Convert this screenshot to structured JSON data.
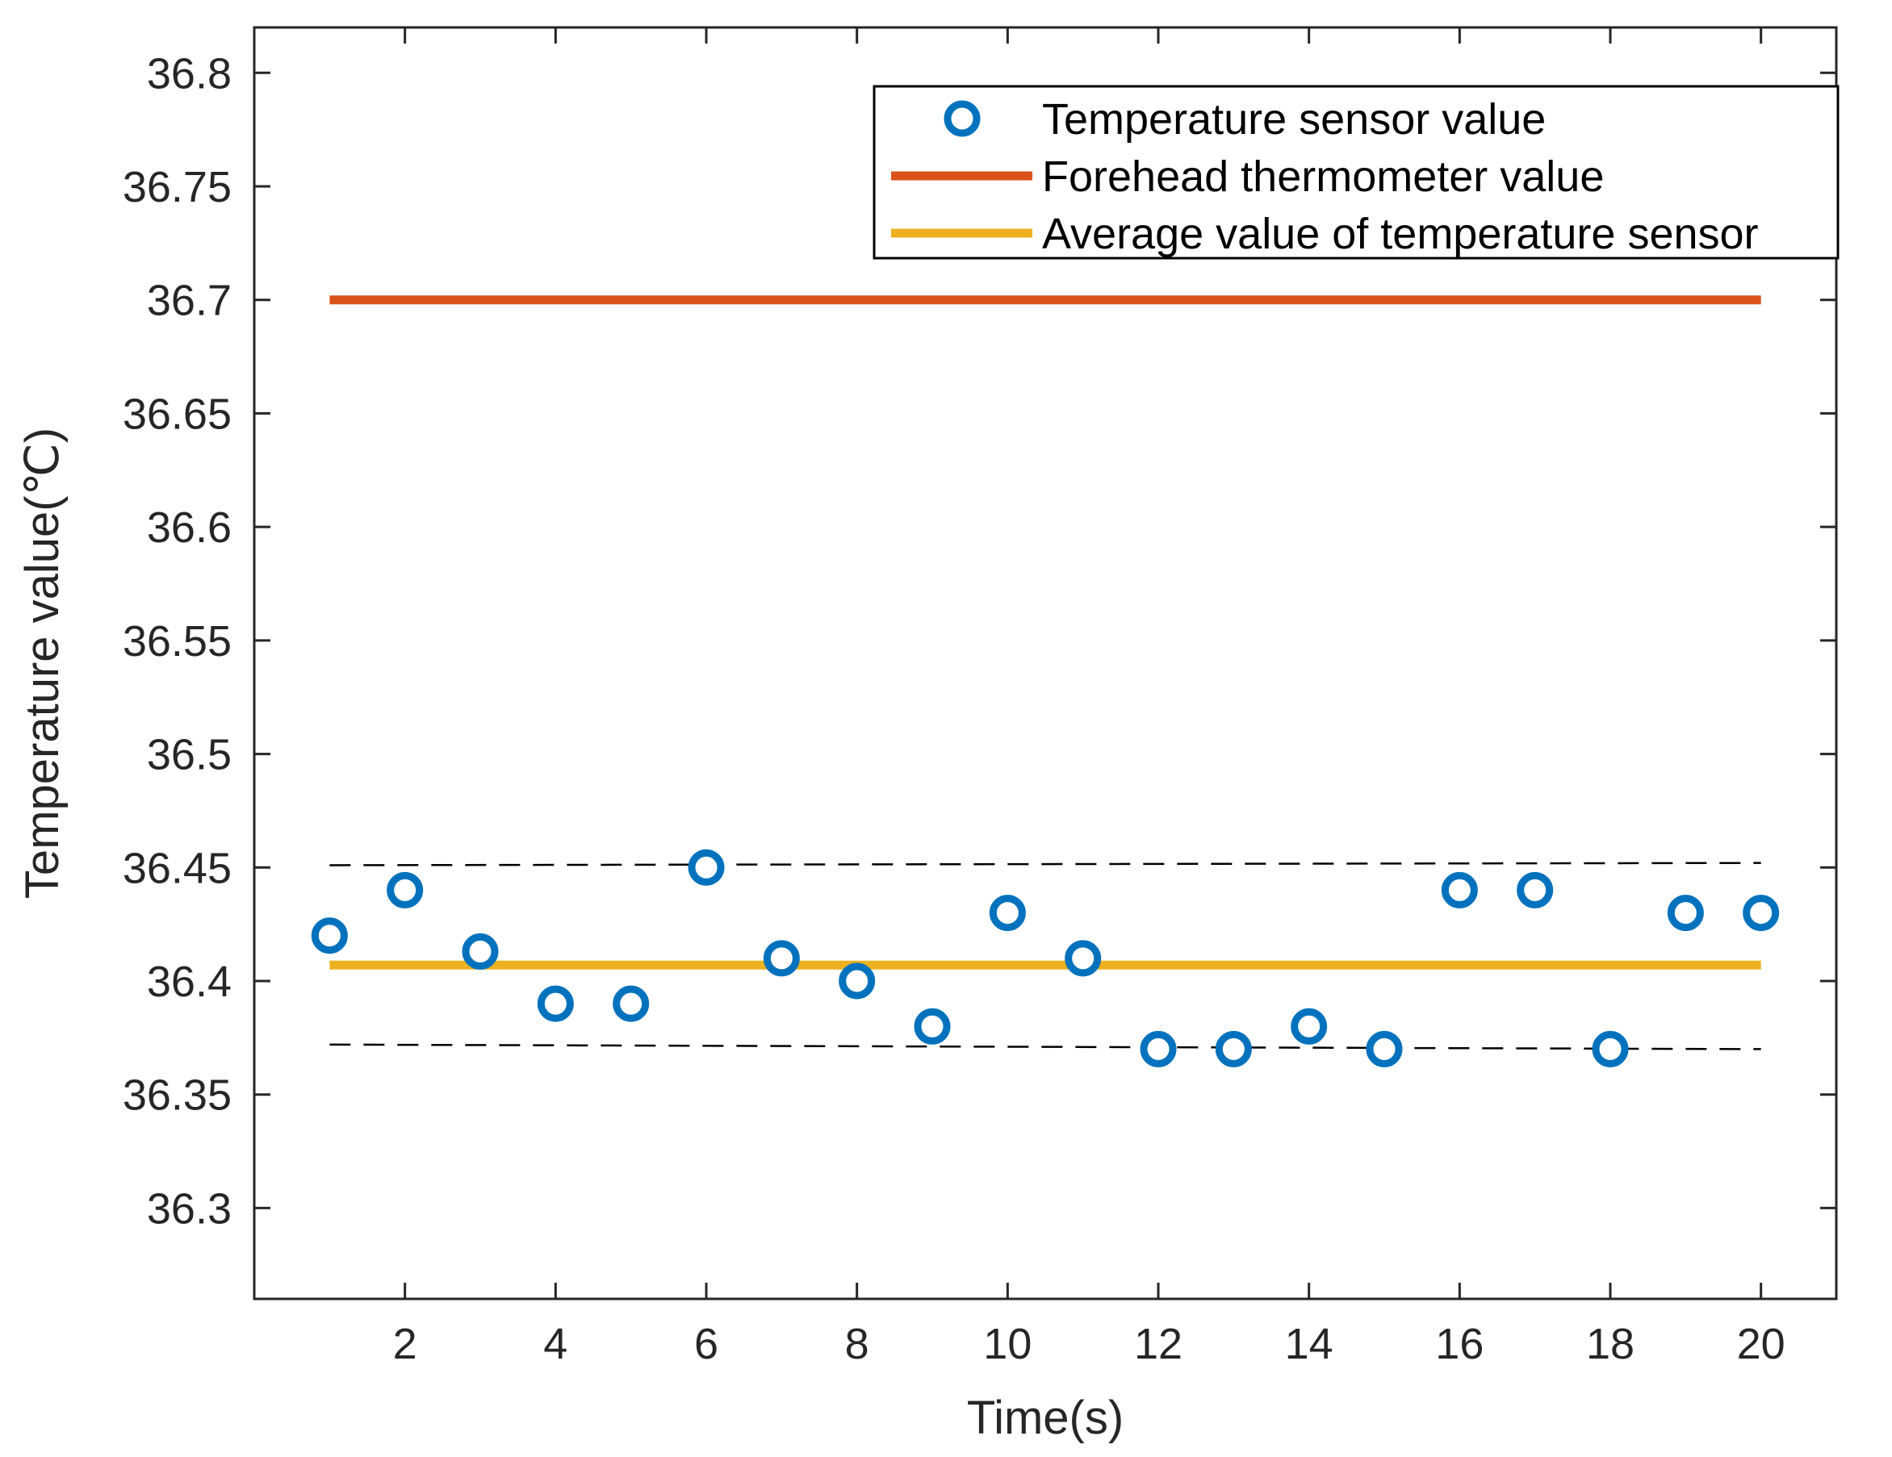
{
  "chart_data": {
    "type": "scatter",
    "title": "",
    "xlabel": "Time(s)",
    "ylabel": "Temperature value(℃)",
    "xlim": [
      0,
      21
    ],
    "ylim": [
      36.26,
      36.82
    ],
    "xticks": [
      2,
      4,
      6,
      8,
      10,
      12,
      14,
      16,
      18,
      20
    ],
    "xtick_labels": [
      "2",
      "4",
      "6",
      "8",
      "10",
      "12",
      "14",
      "16",
      "18",
      "20"
    ],
    "yticks": [
      36.3,
      36.35,
      36.4,
      36.45,
      36.5,
      36.55,
      36.6,
      36.65,
      36.7,
      36.75,
      36.8
    ],
    "ytick_labels": [
      "36.3",
      "36.35",
      "36.4",
      "36.45",
      "36.5",
      "36.55",
      "36.6",
      "36.65",
      "36.7",
      "36.75",
      "36.8"
    ],
    "grid": false,
    "legend_position": "top-right",
    "series": [
      {
        "name": "Temperature sensor value",
        "kind": "scatter",
        "marker": "circle-open",
        "color": "#0072BD",
        "x": [
          1,
          2,
          3,
          4,
          5,
          6,
          7,
          8,
          9,
          10,
          11,
          12,
          13,
          14,
          15,
          16,
          17,
          18,
          19,
          20
        ],
        "y": [
          36.42,
          36.44,
          36.413,
          36.39,
          36.39,
          36.45,
          36.41,
          36.4,
          36.38,
          36.43,
          36.41,
          36.37,
          36.37,
          36.38,
          36.37,
          36.44,
          36.44,
          36.37,
          36.43,
          36.43
        ]
      },
      {
        "name": "Forehead thermometer value",
        "kind": "line",
        "color": "#D95319",
        "x": [
          1,
          20
        ],
        "y": [
          36.7,
          36.7
        ]
      },
      {
        "name": "Average value of temperature sensor",
        "kind": "line",
        "color": "#EDB120",
        "x": [
          1,
          20
        ],
        "y": [
          36.407,
          36.407
        ]
      }
    ],
    "reference_lines": [
      {
        "name": "upper-bound",
        "style": "dashed",
        "color": "#000000",
        "x": [
          1,
          20
        ],
        "y": [
          36.451,
          36.452
        ]
      },
      {
        "name": "lower-bound",
        "style": "dashed",
        "color": "#000000",
        "x": [
          1,
          20
        ],
        "y": [
          36.372,
          36.37
        ]
      }
    ]
  }
}
